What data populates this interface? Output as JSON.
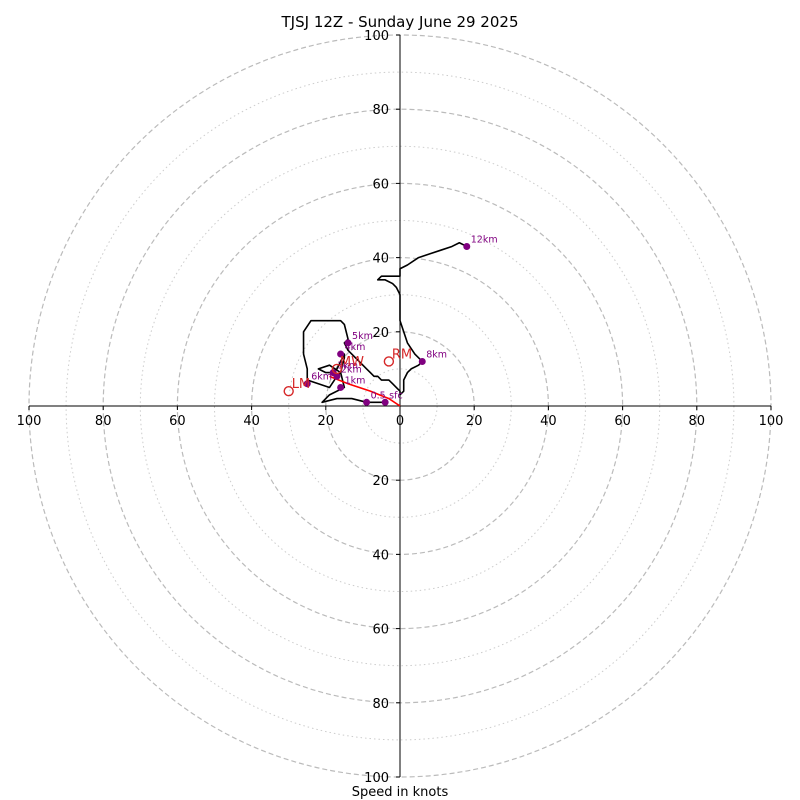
{
  "chart_data": {
    "type": "line",
    "title": "TJSJ 12Z - Sunday June 29 2025",
    "xlabel": "Speed in knots",
    "ylabel": "",
    "xlim": [
      -100,
      100
    ],
    "ylim": [
      -100,
      100
    ],
    "major_rings": [
      20,
      40,
      60,
      80,
      100
    ],
    "minor_rings": [
      10,
      30,
      50,
      70,
      90
    ],
    "x_tick_labels": [
      {
        "value": -100,
        "label": "100"
      },
      {
        "value": -80,
        "label": "80"
      },
      {
        "value": -60,
        "label": "60"
      },
      {
        "value": -40,
        "label": "40"
      },
      {
        "value": -20,
        "label": "20"
      },
      {
        "value": 0,
        "label": "0"
      },
      {
        "value": 20,
        "label": "20"
      },
      {
        "value": 40,
        "label": "40"
      },
      {
        "value": 60,
        "label": "60"
      },
      {
        "value": 80,
        "label": "80"
      },
      {
        "value": 100,
        "label": "100"
      }
    ],
    "y_tick_labels": [
      {
        "value": 100,
        "label": "100"
      },
      {
        "value": 80,
        "label": "80"
      },
      {
        "value": 60,
        "label": "60"
      },
      {
        "value": 40,
        "label": "40"
      },
      {
        "value": 20,
        "label": "20"
      },
      {
        "value": -20,
        "label": "20"
      },
      {
        "value": -40,
        "label": "40"
      },
      {
        "value": -60,
        "label": "60"
      },
      {
        "value": -80,
        "label": "80"
      },
      {
        "value": -100,
        "label": "100"
      }
    ],
    "series": [
      {
        "color": "#000000",
        "points": [
          [
            -4,
            1
          ],
          [
            -9,
            1
          ],
          [
            -13,
            2
          ],
          [
            -17,
            2
          ],
          [
            -21,
            1
          ],
          [
            -19,
            3
          ],
          [
            -15,
            5
          ],
          [
            -16,
            9
          ],
          [
            -15,
            13
          ],
          [
            -15,
            14
          ],
          [
            -16,
            12
          ],
          [
            -17,
            10
          ],
          [
            -18,
            9
          ],
          [
            -20,
            9
          ],
          [
            -22,
            10
          ],
          [
            -19,
            11
          ],
          [
            -16,
            9
          ],
          [
            -17,
            8
          ],
          [
            -19,
            5
          ],
          [
            -22,
            6
          ],
          [
            -25,
            7
          ],
          [
            -25,
            10
          ],
          [
            -26,
            14
          ],
          [
            -26,
            17
          ],
          [
            -26,
            20
          ],
          [
            -24,
            23
          ],
          [
            -21,
            23
          ],
          [
            -16,
            23
          ],
          [
            -15,
            22
          ],
          [
            -14,
            18
          ],
          [
            -15,
            17
          ],
          [
            -14,
            15
          ],
          [
            -13,
            14
          ],
          [
            -12,
            13
          ],
          [
            -11,
            12
          ],
          [
            -10,
            11
          ],
          [
            -9,
            10
          ],
          [
            -8,
            9
          ],
          [
            -7,
            8
          ],
          [
            -6,
            8
          ],
          [
            -5,
            7
          ],
          [
            -3,
            7
          ],
          [
            -2,
            6
          ],
          [
            -1,
            5
          ],
          [
            0,
            4
          ],
          [
            0,
            3
          ],
          [
            1,
            4
          ],
          [
            1,
            7
          ],
          [
            2,
            9
          ],
          [
            3,
            10
          ],
          [
            5,
            11
          ],
          [
            6,
            12
          ],
          [
            4,
            14
          ],
          [
            2,
            17
          ],
          [
            1,
            20
          ],
          [
            0,
            23
          ],
          [
            0,
            27
          ],
          [
            0,
            30
          ],
          [
            -1,
            32
          ],
          [
            -2,
            33
          ],
          [
            -4,
            34
          ],
          [
            -6,
            34
          ],
          [
            -5,
            35
          ],
          [
            0,
            35
          ],
          [
            0,
            37
          ],
          [
            2,
            38
          ],
          [
            5,
            40
          ],
          [
            8,
            41
          ],
          [
            11,
            42
          ],
          [
            14,
            43
          ],
          [
            16,
            44
          ],
          [
            18,
            43
          ]
        ]
      }
    ],
    "bunkers_line": {
      "color": "#ff0000",
      "points": [
        [
          -19,
          8
        ],
        [
          -14,
          6
        ],
        [
          -8,
          4
        ],
        [
          -3,
          2
        ],
        [
          0,
          0
        ]
      ]
    },
    "height_markers": [
      {
        "label": "1km",
        "x": -16,
        "y": 5
      },
      {
        "label": "2km",
        "x": -17,
        "y": 8
      },
      {
        "label": "3km",
        "x": -18,
        "y": 9
      },
      {
        "label": "4km",
        "x": -16,
        "y": 14
      },
      {
        "label": "5km",
        "x": -14,
        "y": 17
      },
      {
        "label": "6km",
        "x": -25,
        "y": 6
      },
      {
        "label": "8km",
        "x": 6,
        "y": 12
      },
      {
        "label": "12km",
        "x": 18,
        "y": 43
      },
      {
        "label": "sfc",
        "x": -4,
        "y": 1
      },
      {
        "label": "0.5",
        "x": -9,
        "y": 1
      }
    ],
    "motion_markers": [
      {
        "label": "RM",
        "x": -3,
        "y": 12
      },
      {
        "label": "LM",
        "x": -30,
        "y": 4
      },
      {
        "label": "MW",
        "x": -17,
        "y": 10
      }
    ],
    "colors": {
      "ring": "#bbbbbb",
      "axis": "#000000",
      "height": "#800080",
      "motion": "#d62728",
      "trace": "#000000",
      "shear": "#ff0000"
    }
  }
}
